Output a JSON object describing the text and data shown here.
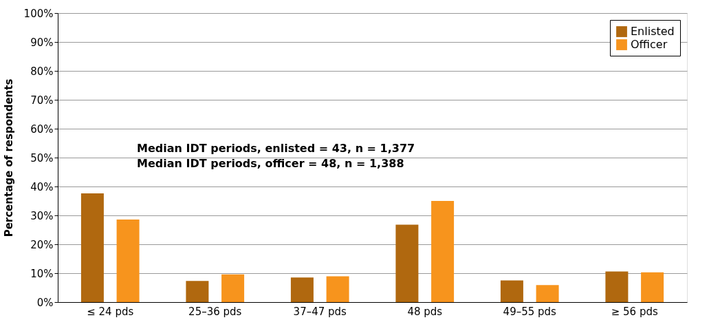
{
  "chart_data": {
    "type": "bar",
    "ylabel": "Percentage of respondents",
    "categories": [
      "≤ 24 pds",
      "25–36 pds",
      "37–47 pds",
      "48 pds",
      "49–55 pds",
      "≥ 56 pds"
    ],
    "series": [
      {
        "name": "Enlisted",
        "color": "#b0680f",
        "values": [
          37.6,
          7.3,
          8.5,
          26.8,
          7.5,
          10.6
        ]
      },
      {
        "name": "Officer",
        "color": "#f7941d",
        "values": [
          28.6,
          9.6,
          8.9,
          35.0,
          5.9,
          10.3
        ]
      }
    ],
    "ylim": [
      0,
      100
    ],
    "yticks": [
      {
        "value": 0,
        "label": "0%"
      },
      {
        "value": 10,
        "label": "10%"
      },
      {
        "value": 20,
        "label": "20%"
      },
      {
        "value": 30,
        "label": "30%"
      },
      {
        "value": 40,
        "label": "40%"
      },
      {
        "value": 50,
        "label": "50%"
      },
      {
        "value": 60,
        "label": "60%"
      },
      {
        "value": 70,
        "label": "70%"
      },
      {
        "value": 80,
        "label": "80%"
      },
      {
        "value": 90,
        "label": "90%"
      },
      {
        "value": 100,
        "label": "100%"
      }
    ],
    "grid": "y",
    "legend": "top right",
    "annotations": [
      "Median IDT periods, enlisted = 43, n = 1,377",
      "Median IDT periods, officer = 48, n = 1,388"
    ]
  }
}
